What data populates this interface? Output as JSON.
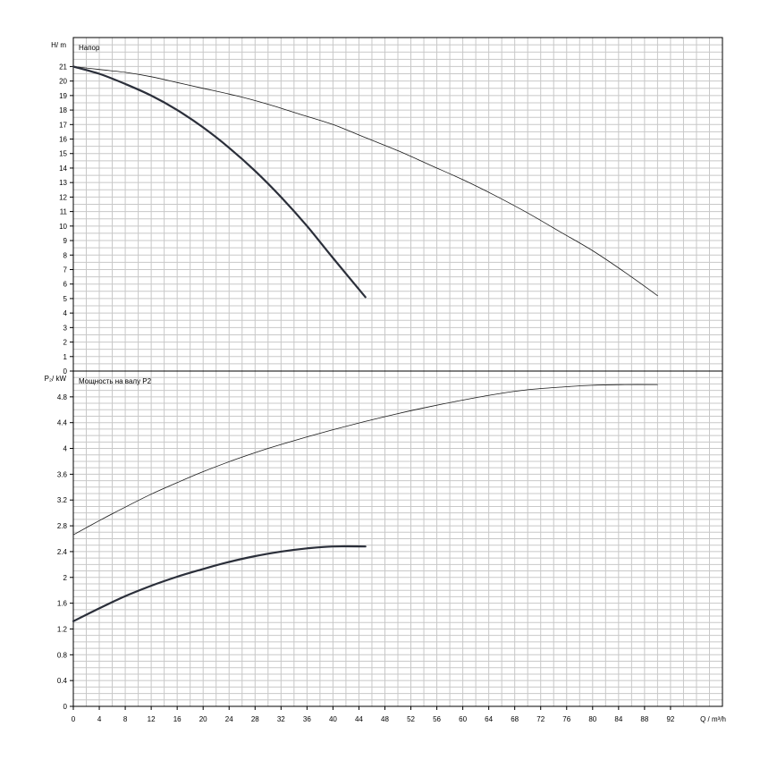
{
  "chart_data": [
    {
      "panel": "head",
      "type": "line",
      "title": "Напор",
      "ylabel": "H/ m",
      "ylim": [
        0,
        23
      ],
      "yticks": [
        0,
        1,
        2,
        3,
        4,
        5,
        6,
        7,
        8,
        9,
        10,
        11,
        12,
        13,
        14,
        15,
        16,
        17,
        18,
        19,
        20,
        21
      ],
      "grid": true,
      "series": [
        {
          "style": "thin",
          "x": [
            0,
            4,
            8,
            12,
            16,
            20,
            25,
            30,
            35,
            40,
            45,
            50,
            55,
            60,
            65,
            70,
            75,
            80,
            85,
            90
          ],
          "y": [
            21,
            20.8,
            20.6,
            20.3,
            19.9,
            19.5,
            19.0,
            18.4,
            17.7,
            17.0,
            16.1,
            15.2,
            14.2,
            13.2,
            12.1,
            10.9,
            9.6,
            8.3,
            6.8,
            5.2
          ]
        },
        {
          "style": "thick",
          "x": [
            0,
            4,
            8,
            12,
            16,
            20,
            24,
            28,
            32,
            36,
            40,
            45
          ],
          "y": [
            21,
            20.5,
            19.8,
            19.0,
            18.0,
            16.8,
            15.4,
            13.8,
            12.0,
            10.0,
            7.8,
            5.1
          ]
        }
      ]
    },
    {
      "panel": "power",
      "type": "line",
      "title": "Мощность на валу P2",
      "ylabel": "P₂/ kW",
      "ylim": [
        0,
        5.2
      ],
      "yticks": [
        "0",
        "0.4",
        "0.8",
        "1.2",
        "1.6",
        "2",
        "2.4",
        "2.8",
        "3.2",
        "3.6",
        "4",
        "4.4",
        "4.8"
      ],
      "grid": true,
      "series": [
        {
          "style": "thin",
          "x": [
            0,
            4,
            8,
            12,
            16,
            20,
            25,
            30,
            35,
            40,
            45,
            50,
            55,
            60,
            65,
            70,
            75,
            80,
            85,
            90
          ],
          "y": [
            2.66,
            2.88,
            3.09,
            3.29,
            3.47,
            3.64,
            3.83,
            4.0,
            4.15,
            4.29,
            4.42,
            4.54,
            4.65,
            4.75,
            4.84,
            4.91,
            4.95,
            4.98,
            4.99,
            4.99
          ]
        },
        {
          "style": "thick",
          "x": [
            0,
            4,
            8,
            12,
            16,
            20,
            24,
            28,
            32,
            36,
            40,
            45
          ],
          "y": [
            1.32,
            1.52,
            1.71,
            1.87,
            2.01,
            2.13,
            2.24,
            2.33,
            2.4,
            2.45,
            2.48,
            2.48
          ]
        }
      ]
    }
  ],
  "xaxis": {
    "label": "Q / m³/h",
    "ticks": [
      "0",
      "4",
      "8",
      "12",
      "16",
      "20",
      "24",
      "28",
      "32",
      "36",
      "40",
      "44",
      "48",
      "52",
      "56",
      "60",
      "64",
      "68",
      "72",
      "76",
      "80",
      "84",
      "88",
      "92"
    ],
    "xlim": [
      0,
      100
    ]
  }
}
